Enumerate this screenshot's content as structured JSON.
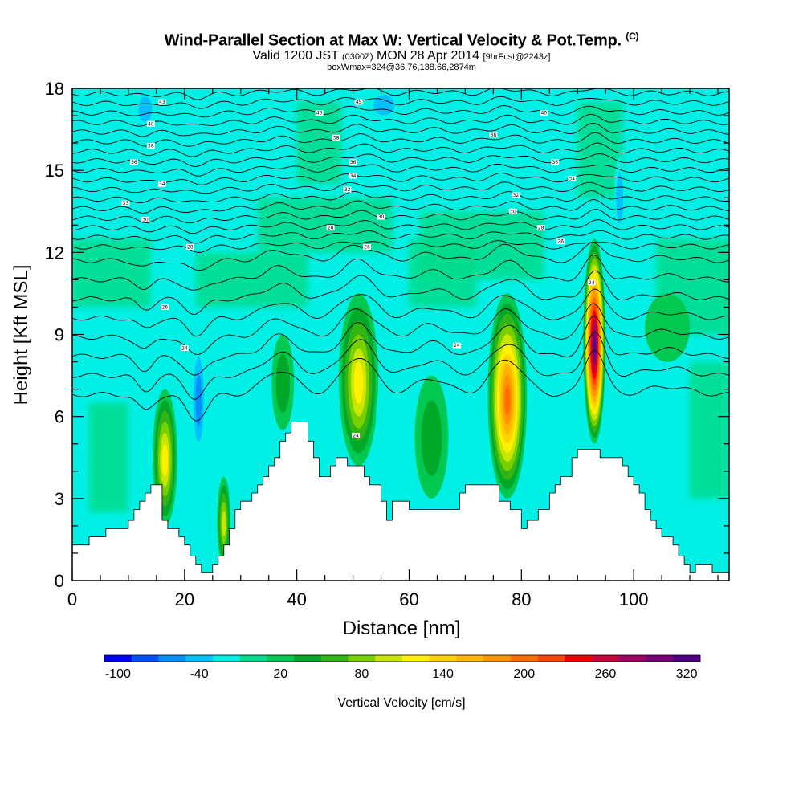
{
  "title": {
    "main": "Wind-Parallel Section at Max W: Vertical Velocity & Pot.Temp.",
    "mark": "(C)",
    "valid_a": "Valid 1200 JST",
    "valid_b": "(0300Z)",
    "valid_c": "MON 28 Apr 2014",
    "valid_d": "[9hrFcst@2243z]",
    "box": "boxWmax=324@36.76,138.66,2874m"
  },
  "chart_data": {
    "type": "heatmap",
    "title": "Wind-Parallel Section at Max W: Vertical Velocity & Pot.Temp.",
    "xlabel": "Distance [nm]",
    "ylabel": "Height [Kft MSL]",
    "xlim": [
      0,
      117
    ],
    "ylim": [
      0,
      18
    ],
    "x_ticks": [
      0,
      20,
      40,
      60,
      80,
      100
    ],
    "y_ticks": [
      0,
      3,
      6,
      9,
      12,
      15,
      18
    ],
    "colorbar": {
      "label": "Vertical Velocity [cm/s]",
      "tick_labels": [
        "-100",
        "-40",
        "20",
        "80",
        "140",
        "200",
        "260",
        "320"
      ],
      "colors": [
        "#0000ff",
        "#0050ff",
        "#0090ff",
        "#00c0ff",
        "#00f0e6",
        "#00dc8c",
        "#00c850",
        "#00a82a",
        "#32b414",
        "#78d000",
        "#c8e600",
        "#fff000",
        "#ffd200",
        "#ffb400",
        "#ff9600",
        "#ff6e00",
        "#ff4600",
        "#f00000",
        "#c8003c",
        "#a00064",
        "#780078",
        "#500082"
      ]
    },
    "terrain": [
      [
        0,
        1.3
      ],
      [
        3,
        1.3
      ],
      [
        3,
        1.6
      ],
      [
        6,
        1.6
      ],
      [
        6,
        1.9
      ],
      [
        10,
        1.9
      ],
      [
        10,
        2.2
      ],
      [
        11,
        2.2
      ],
      [
        11,
        2.6
      ],
      [
        12,
        2.6
      ],
      [
        12,
        2.9
      ],
      [
        13,
        2.9
      ],
      [
        13,
        3.2
      ],
      [
        14,
        3.2
      ],
      [
        14,
        3.5
      ],
      [
        16,
        3.5
      ],
      [
        16,
        2.2
      ],
      [
        17,
        2.2
      ],
      [
        17,
        1.9
      ],
      [
        19,
        1.9
      ],
      [
        19,
        1.6
      ],
      [
        20,
        1.6
      ],
      [
        20,
        1.3
      ],
      [
        21,
        1.3
      ],
      [
        21,
        0.9
      ],
      [
        22,
        0.9
      ],
      [
        22,
        0.6
      ],
      [
        23,
        0.6
      ],
      [
        23,
        0.3
      ],
      [
        25,
        0.3
      ],
      [
        25,
        0.6
      ],
      [
        26,
        0.6
      ],
      [
        26,
        0.9
      ],
      [
        27,
        0.9
      ],
      [
        27,
        1.3
      ],
      [
        28,
        1.3
      ],
      [
        28,
        1.9
      ],
      [
        29,
        1.9
      ],
      [
        29,
        2.6
      ],
      [
        30,
        2.6
      ],
      [
        30,
        2.9
      ],
      [
        32,
        2.9
      ],
      [
        32,
        3.2
      ],
      [
        33,
        3.2
      ],
      [
        33,
        3.5
      ],
      [
        34,
        3.5
      ],
      [
        34,
        3.8
      ],
      [
        35,
        3.8
      ],
      [
        35,
        4.2
      ],
      [
        36,
        4.2
      ],
      [
        36,
        4.5
      ],
      [
        37,
        4.5
      ],
      [
        37,
        5.1
      ],
      [
        38,
        5.1
      ],
      [
        38,
        5.4
      ],
      [
        39,
        5.4
      ],
      [
        39,
        5.8
      ],
      [
        42,
        5.8
      ],
      [
        42,
        5.1
      ],
      [
        43,
        5.1
      ],
      [
        43,
        4.5
      ],
      [
        44,
        4.5
      ],
      [
        44,
        3.8
      ],
      [
        46,
        3.8
      ],
      [
        46,
        4.2
      ],
      [
        47,
        4.2
      ],
      [
        47,
        4.5
      ],
      [
        49,
        4.5
      ],
      [
        49,
        4.2
      ],
      [
        52,
        4.2
      ],
      [
        52,
        3.8
      ],
      [
        53,
        3.8
      ],
      [
        53,
        3.5
      ],
      [
        55,
        3.5
      ],
      [
        55,
        2.9
      ],
      [
        56,
        2.9
      ],
      [
        56,
        2.2
      ],
      [
        57,
        2.2
      ],
      [
        57,
        2.9
      ],
      [
        60,
        2.9
      ],
      [
        60,
        2.6
      ],
      [
        69,
        2.6
      ],
      [
        69,
        3.2
      ],
      [
        70,
        3.2
      ],
      [
        70,
        3.5
      ],
      [
        76,
        3.5
      ],
      [
        76,
        2.9
      ],
      [
        78,
        2.9
      ],
      [
        78,
        2.6
      ],
      [
        80,
        2.6
      ],
      [
        80,
        1.9
      ],
      [
        81,
        1.9
      ],
      [
        81,
        2.2
      ],
      [
        83,
        2.2
      ],
      [
        83,
        2.6
      ],
      [
        85,
        2.6
      ],
      [
        85,
        3.2
      ],
      [
        86,
        3.2
      ],
      [
        86,
        3.5
      ],
      [
        87,
        3.5
      ],
      [
        87,
        3.8
      ],
      [
        89,
        3.8
      ],
      [
        89,
        4.5
      ],
      [
        90,
        4.5
      ],
      [
        90,
        4.8
      ],
      [
        94,
        4.8
      ],
      [
        94,
        4.5
      ],
      [
        98,
        4.5
      ],
      [
        98,
        4.2
      ],
      [
        99,
        4.2
      ],
      [
        99,
        3.8
      ],
      [
        100,
        3.8
      ],
      [
        100,
        3.5
      ],
      [
        101,
        3.5
      ],
      [
        101,
        3.2
      ],
      [
        102,
        3.2
      ],
      [
        102,
        2.6
      ],
      [
        103,
        2.6
      ],
      [
        103,
        2.2
      ],
      [
        104,
        2.2
      ],
      [
        104,
        1.9
      ],
      [
        105,
        1.9
      ],
      [
        105,
        1.6
      ],
      [
        107,
        1.6
      ],
      [
        107,
        1.3
      ],
      [
        108,
        1.3
      ],
      [
        108,
        0.9
      ],
      [
        109,
        0.9
      ],
      [
        109,
        0.6
      ],
      [
        110,
        0.6
      ],
      [
        110,
        0.3
      ],
      [
        111,
        0.3
      ],
      [
        111,
        0.6
      ],
      [
        114,
        0.6
      ],
      [
        114,
        0.3
      ],
      [
        117,
        0.3
      ],
      [
        117,
        0
      ],
      [
        0,
        0
      ]
    ],
    "updrafts": [
      {
        "x": 16.5,
        "ybottom": 2.0,
        "ytop": 7.0,
        "peak": 130,
        "width": 2.2
      },
      {
        "x": 27.0,
        "ybottom": 0.5,
        "ytop": 3.8,
        "peak": 110,
        "width": 1.2
      },
      {
        "x": 37.5,
        "ybottom": 5.5,
        "ytop": 9.0,
        "peak": 55,
        "width": 2.0
      },
      {
        "x": 51.0,
        "ybottom": 4.2,
        "ytop": 10.5,
        "peak": 120,
        "width": 3.5
      },
      {
        "x": 64.0,
        "ybottom": 3.0,
        "ytop": 7.5,
        "peak": 45,
        "width": 3.0
      },
      {
        "x": 77.5,
        "ybottom": 3.0,
        "ytop": 10.5,
        "peak": 200,
        "width": 3.5
      },
      {
        "x": 93.0,
        "ybottom": 5.0,
        "ytop": 12.5,
        "peak": 320,
        "width": 2.0
      },
      {
        "x": 106.0,
        "ybottom": 8.0,
        "ytop": 10.5,
        "peak": 25,
        "width": 4.0
      }
    ],
    "downdrafts": [
      {
        "x": 13.0,
        "ybottom": 2.5,
        "ytop": 5.5,
        "peak": -35,
        "width": 1.2
      },
      {
        "x": 22.5,
        "ybottom": 4.5,
        "ytop": 8.8,
        "peak": -65,
        "width": 1.3
      },
      {
        "x": 43.5,
        "ybottom": 5.0,
        "ytop": 9.5,
        "peak": -25,
        "width": 3.0
      },
      {
        "x": 56.5,
        "ybottom": 2.8,
        "ytop": 8.0,
        "peak": -30,
        "width": 2.5
      },
      {
        "x": 70.5,
        "ybottom": 3.8,
        "ytop": 7.8,
        "peak": -30,
        "width": 3.0
      },
      {
        "x": 88.5,
        "ybottom": 4.5,
        "ytop": 11.0,
        "peak": -25,
        "width": 2.0
      },
      {
        "x": 97.5,
        "ybottom": 12.5,
        "ytop": 15.5,
        "peak": -45,
        "width": 1.0
      },
      {
        "x": 13.0,
        "ybottom": 16.5,
        "ytop": 18.0,
        "peak": -40,
        "width": 2.0
      },
      {
        "x": 55.5,
        "ybottom": 16.8,
        "ytop": 18.0,
        "peak": -45,
        "width": 3.0
      }
    ],
    "contour_labels": [
      {
        "x": 16,
        "y": 17.5,
        "text": "43"
      },
      {
        "x": 14,
        "y": 16.7,
        "text": "40"
      },
      {
        "x": 14,
        "y": 15.9,
        "text": "38"
      },
      {
        "x": 11,
        "y": 15.3,
        "text": "36"
      },
      {
        "x": 16,
        "y": 14.5,
        "text": "34"
      },
      {
        "x": 9.5,
        "y": 13.8,
        "text": "33"
      },
      {
        "x": 13,
        "y": 13.2,
        "text": "30"
      },
      {
        "x": 21,
        "y": 12.2,
        "text": "28"
      },
      {
        "x": 16.5,
        "y": 10.0,
        "text": "26"
      },
      {
        "x": 20,
        "y": 8.5,
        "text": "24"
      },
      {
        "x": 44,
        "y": 17.1,
        "text": "40"
      },
      {
        "x": 51,
        "y": 17.5,
        "text": "45"
      },
      {
        "x": 47,
        "y": 16.2,
        "text": "38"
      },
      {
        "x": 50,
        "y": 15.3,
        "text": "36"
      },
      {
        "x": 50,
        "y": 14.8,
        "text": "34"
      },
      {
        "x": 49,
        "y": 14.3,
        "text": "32"
      },
      {
        "x": 55,
        "y": 13.3,
        "text": "30"
      },
      {
        "x": 46,
        "y": 12.9,
        "text": "28"
      },
      {
        "x": 52.5,
        "y": 12.2,
        "text": "26"
      },
      {
        "x": 50.5,
        "y": 5.3,
        "text": "24"
      },
      {
        "x": 68.5,
        "y": 8.6,
        "text": "24"
      },
      {
        "x": 75,
        "y": 16.3,
        "text": "38"
      },
      {
        "x": 84,
        "y": 17.1,
        "text": "40"
      },
      {
        "x": 86,
        "y": 15.3,
        "text": "36"
      },
      {
        "x": 89,
        "y": 14.7,
        "text": "34"
      },
      {
        "x": 79,
        "y": 14.1,
        "text": "32"
      },
      {
        "x": 78.5,
        "y": 13.5,
        "text": "30"
      },
      {
        "x": 83.5,
        "y": 12.9,
        "text": "28"
      },
      {
        "x": 87,
        "y": 12.4,
        "text": "26"
      },
      {
        "x": 92.5,
        "y": 10.9,
        "text": "24"
      }
    ]
  }
}
